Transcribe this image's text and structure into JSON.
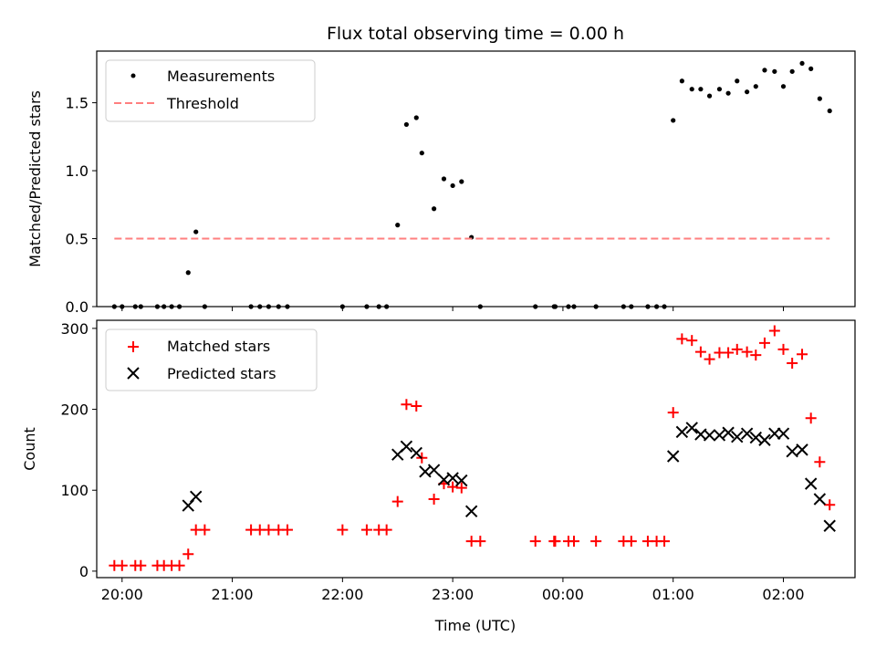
{
  "chart_data": [
    {
      "type": "scatter",
      "title": "Flux total observing time = 0.00 h",
      "xlabel": "",
      "ylabel": "Matched/Predicted stars",
      "xlim": [
        19.77,
        26.65
      ],
      "ylim": [
        0.0,
        1.88
      ],
      "x_ticks": [
        20,
        21,
        22,
        23,
        24,
        25,
        26
      ],
      "x_tick_labels_shown": false,
      "y_ticks": [
        0.0,
        0.5,
        1.0,
        1.5
      ],
      "y_tick_labels": [
        "0.0",
        "0.5",
        "1.0",
        "1.5"
      ],
      "legend_position": "top-left",
      "series": [
        {
          "name": "Measurements",
          "kind": "points",
          "color": "#000000",
          "x": [
            19.93,
            20.0,
            20.12,
            20.17,
            20.32,
            20.38,
            20.45,
            20.52,
            20.6,
            20.67,
            20.75,
            21.17,
            21.25,
            21.33,
            21.42,
            21.5,
            22.0,
            22.22,
            22.33,
            22.4,
            22.5,
            22.58,
            22.67,
            22.72,
            22.83,
            22.92,
            23.0,
            23.08,
            23.17,
            23.25,
            23.75,
            23.92,
            23.93,
            24.05,
            24.1,
            24.3,
            24.55,
            24.62,
            24.77,
            24.85,
            24.92,
            25.0,
            25.08,
            25.17,
            25.25,
            25.33,
            25.42,
            25.5,
            25.58,
            25.67,
            25.75,
            25.83,
            25.92,
            26.0,
            26.08,
            26.17,
            26.25,
            26.33,
            26.42
          ],
          "y": [
            0.0,
            0.0,
            0.0,
            0.0,
            0.0,
            0.0,
            0.0,
            0.0,
            0.25,
            0.55,
            0.0,
            0.0,
            0.0,
            0.0,
            0.0,
            0.0,
            0.0,
            0.0,
            0.0,
            0.0,
            0.6,
            1.34,
            1.39,
            1.13,
            0.72,
            0.94,
            0.89,
            0.92,
            0.51,
            0.0,
            0.0,
            0.0,
            0.0,
            0.0,
            0.0,
            0.0,
            0.0,
            0.0,
            0.0,
            0.0,
            0.0,
            1.37,
            1.66,
            1.6,
            1.6,
            1.55,
            1.6,
            1.57,
            1.66,
            1.58,
            1.62,
            1.74,
            1.73,
            1.62,
            1.73,
            1.79,
            1.75,
            1.53,
            1.44
          ]
        },
        {
          "name": "Threshold",
          "kind": "dashed-line",
          "color": "#ff7f7f",
          "x": [
            19.93,
            26.42
          ],
          "y": [
            0.5,
            0.5
          ]
        }
      ]
    },
    {
      "type": "scatter",
      "title": "",
      "xlabel": "Time (UTC)",
      "ylabel": "Count",
      "xlim": [
        19.77,
        26.65
      ],
      "ylim": [
        -8,
        310
      ],
      "x_ticks": [
        20,
        21,
        22,
        23,
        24,
        25,
        26
      ],
      "x_tick_labels": [
        "20:00",
        "21:00",
        "22:00",
        "23:00",
        "00:00",
        "01:00",
        "02:00"
      ],
      "y_ticks": [
        0,
        100,
        200,
        300
      ],
      "y_tick_labels": [
        "0",
        "100",
        "200",
        "300"
      ],
      "legend_position": "top-left",
      "series": [
        {
          "name": "Matched stars",
          "kind": "plus",
          "color": "#ff0000",
          "x": [
            19.93,
            20.0,
            20.12,
            20.17,
            20.32,
            20.38,
            20.45,
            20.52,
            20.6,
            20.67,
            20.75,
            21.17,
            21.25,
            21.33,
            21.42,
            21.5,
            22.0,
            22.22,
            22.33,
            22.4,
            22.5,
            22.58,
            22.67,
            22.72,
            22.83,
            22.92,
            23.0,
            23.08,
            23.17,
            23.25,
            23.75,
            23.92,
            23.93,
            24.05,
            24.1,
            24.3,
            24.55,
            24.62,
            24.77,
            24.85,
            24.92,
            25.0,
            25.08,
            25.17,
            25.25,
            25.33,
            25.42,
            25.5,
            25.58,
            25.67,
            25.75,
            25.83,
            25.92,
            26.0,
            26.08,
            26.17,
            26.25,
            26.33,
            26.42
          ],
          "y": [
            7,
            7,
            7,
            7,
            7,
            7,
            7,
            7,
            21,
            51,
            51,
            51,
            51,
            51,
            51,
            51,
            51,
            51,
            51,
            51,
            86,
            206,
            204,
            140,
            89,
            108,
            104,
            103,
            37,
            37,
            37,
            37,
            37,
            37,
            37,
            37,
            37,
            37,
            37,
            37,
            37,
            196,
            287,
            285,
            271,
            262,
            270,
            270,
            274,
            271,
            267,
            282,
            297,
            274,
            257,
            268,
            189,
            135,
            82
          ]
        },
        {
          "name": "Predicted stars",
          "kind": "x",
          "color": "#000000",
          "x": [
            20.6,
            20.67,
            22.5,
            22.58,
            22.67,
            22.75,
            22.83,
            22.92,
            23.0,
            23.08,
            23.17,
            25.0,
            25.08,
            25.17,
            25.25,
            25.33,
            25.42,
            25.5,
            25.58,
            25.67,
            25.75,
            25.83,
            25.92,
            26.0,
            26.08,
            26.17,
            26.25,
            26.33,
            26.42
          ],
          "y": [
            81,
            92,
            144,
            154,
            146,
            123,
            125,
            113,
            115,
            112,
            74,
            142,
            172,
            177,
            169,
            168,
            168,
            171,
            166,
            170,
            165,
            162,
            170,
            170,
            148,
            150,
            108,
            89,
            56
          ]
        }
      ]
    }
  ]
}
